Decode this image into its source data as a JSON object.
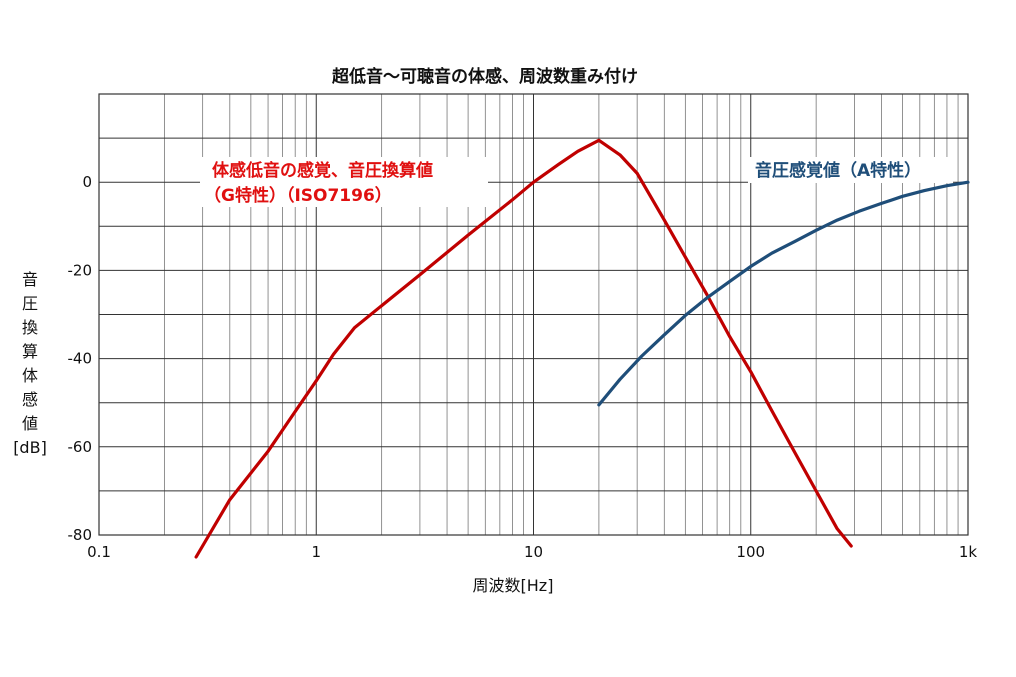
{
  "chart_data": {
    "type": "line",
    "title": "超低音～可聴音の体感、周波数重み付け",
    "xlabel": "周波数[Hz]",
    "ylabel": [
      "音",
      "圧",
      "換",
      "算",
      "体",
      "感",
      "値",
      "[dB]"
    ],
    "x_scale": "log",
    "xlim": [
      0.1,
      1000
    ],
    "ylim": [
      -80,
      20
    ],
    "x_ticks": [
      {
        "value": 0.1,
        "label": "0.1"
      },
      {
        "value": 1,
        "label": "1"
      },
      {
        "value": 10,
        "label": "10"
      },
      {
        "value": 100,
        "label": "100"
      },
      {
        "value": 1000,
        "label": "1k"
      }
    ],
    "y_ticks": [
      {
        "value": 0,
        "label": "0"
      },
      {
        "value": -20,
        "label": "-20"
      },
      {
        "value": -40,
        "label": "-40"
      },
      {
        "value": -60,
        "label": "-60"
      },
      {
        "value": -80,
        "label": "-80"
      }
    ],
    "grid": true,
    "series": [
      {
        "name_lines": [
          "体感低音の感覚、音圧換算値",
          "（G特性）（ISO7196）"
        ],
        "color": "#c00000",
        "x": [
          0.28,
          0.4,
          0.6,
          0.8,
          1.0,
          1.2,
          1.5,
          2,
          3,
          5,
          8,
          10,
          13,
          16,
          20,
          25,
          30,
          40,
          50,
          63,
          80,
          100,
          125,
          160,
          200,
          250,
          290
        ],
        "y": [
          -85,
          -72,
          -61,
          -52,
          -45,
          -39,
          -33,
          -28,
          -21,
          -12,
          -4,
          0,
          4,
          7,
          9.5,
          6.2,
          2,
          -8.6,
          -17,
          -25.6,
          -35,
          -43,
          -51.8,
          -61.4,
          -70,
          -78.6,
          -82.5
        ]
      },
      {
        "name_lines": [
          "音圧感覚値（A特性）"
        ],
        "color": "#1f4e79",
        "x": [
          20,
          25,
          31.5,
          40,
          50,
          63,
          80,
          100,
          125,
          160,
          200,
          250,
          315,
          400,
          500,
          630,
          800,
          1000
        ],
        "y": [
          -50.5,
          -44.7,
          -39.4,
          -34.6,
          -30.2,
          -26.2,
          -22.5,
          -19.1,
          -16.1,
          -13.4,
          -10.9,
          -8.6,
          -6.6,
          -4.8,
          -3.2,
          -1.9,
          -0.8,
          0
        ]
      }
    ]
  }
}
